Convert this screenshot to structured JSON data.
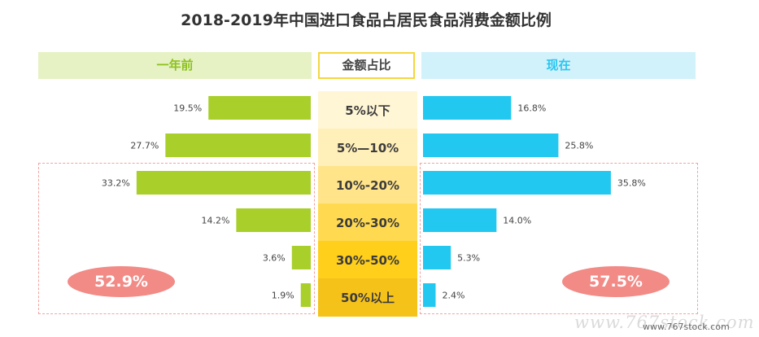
{
  "chart_data": {
    "type": "bar",
    "title": "2018-2019年中国进口食品占居民食品消费金额比例",
    "categories": [
      "5%以下",
      "5%—10%",
      "10%-20%",
      "20%-30%",
      "30%-50%",
      "50%以上"
    ],
    "category_header": "金额占比",
    "series": [
      {
        "name": "一年前",
        "values": [
          19.5,
          27.7,
          33.2,
          14.2,
          3.6,
          1.9
        ],
        "labels": [
          "19.5%",
          "27.7%",
          "33.2%",
          "14.2%",
          "3.6%",
          "1.9%"
        ],
        "color": "#a8cf2a",
        "highlight_total": "52.9%"
      },
      {
        "name": "现在",
        "values": [
          16.8,
          25.8,
          35.8,
          14.0,
          5.3,
          2.4
        ],
        "labels": [
          "16.8%",
          "25.8%",
          "35.8%",
          "14.0%",
          "5.3%",
          "2.4%"
        ],
        "color": "#23c8f0",
        "highlight_total": "57.5%"
      }
    ],
    "band_colors": [
      "#fff6d6",
      "#ffefb8",
      "#ffe48a",
      "#ffd94f",
      "#ffcf1c",
      "#f5c21a"
    ],
    "header_colors": {
      "left": "#e6f2c4",
      "right": "#d1f1fb"
    },
    "badge_color": "#f28a86"
  },
  "watermark": "www.767stock.com"
}
